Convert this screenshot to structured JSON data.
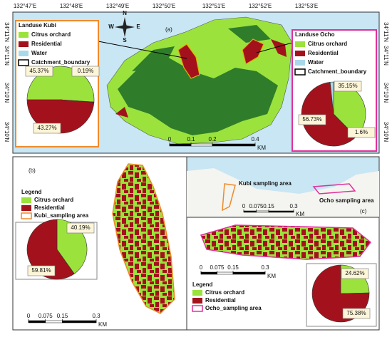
{
  "map_a": {
    "label": "(a)",
    "lon_labels": [
      "132°47'E",
      "132°48'E",
      "132°49'E",
      "132°50'E",
      "132°51'E",
      "132°52'E",
      "132°53'E"
    ],
    "lat_labels_left": [
      "34°11'N",
      "34°11'N",
      "34°10'N",
      "34°10'N"
    ],
    "lat_labels_right": [
      "34°11'N",
      "34°11'N",
      "34°10'N",
      "34°10'N"
    ],
    "north": [
      "N",
      "E",
      "S",
      "W"
    ],
    "scale": {
      "ticks": [
        0,
        0.1,
        0.2,
        0.4
      ],
      "unit": "KM"
    },
    "kubi": {
      "title": "Landuse Kubi",
      "legend": [
        {
          "name": "Citrus orchard",
          "fill": "#9be33c"
        },
        {
          "name": "Residential",
          "fill": "#a3121c"
        },
        {
          "name": "Water",
          "fill": "#a9d8ea"
        },
        {
          "name": "Catchment_boundary",
          "stroke": "#000000"
        }
      ],
      "pie": {
        "values": [
          45.37,
          0.19,
          43.27
        ],
        "value_labels": [
          "45.37%",
          "0.19%",
          "43.27%"
        ],
        "colors": [
          "#9be33c",
          "#a9d8ea",
          "#a3121c"
        ]
      }
    },
    "ocho": {
      "title": "Landuse Ocho",
      "legend": [
        {
          "name": "Citrus orchard",
          "fill": "#9be33c"
        },
        {
          "name": "Residential",
          "fill": "#a3121c"
        },
        {
          "name": "Water",
          "fill": "#a9d8ea"
        },
        {
          "name": "Catchment_boundary",
          "stroke": "#000000"
        }
      ],
      "pie": {
        "values": [
          35.15,
          56.73,
          1.6
        ],
        "value_labels": [
          "35.15%",
          "56.73%",
          "1.6%"
        ],
        "colors": [
          "#9be33c",
          "#a3121c",
          "#a9d8ea"
        ]
      }
    }
  },
  "panel_b": {
    "label": "(b)",
    "legend_title": "Legend",
    "legend": [
      {
        "name": "Citrus orchard",
        "fill": "#9be33c"
      },
      {
        "name": "Residential",
        "fill": "#a3121c"
      },
      {
        "name": "Kubi_sampling area",
        "stroke": "#f08a2a"
      }
    ],
    "pie": {
      "values": [
        40.19,
        59.81
      ],
      "value_labels": [
        "40.19%",
        "59.81%"
      ],
      "colors": [
        "#9be33c",
        "#a3121c"
      ]
    },
    "scale": {
      "ticks": [
        0,
        0.075,
        0.15,
        0.3
      ],
      "unit": "KM"
    }
  },
  "panel_c": {
    "label": "(c)",
    "inset_labels": [
      "Kubi sampling area",
      "Ocho sampling area"
    ],
    "inset_scale": {
      "ticks": [
        0,
        0.075,
        0.15,
        0.3
      ],
      "unit": "KM"
    },
    "legend_title": "Legend",
    "legend": [
      {
        "name": "Citrus orchard",
        "fill": "#9be33c"
      },
      {
        "name": "Residential",
        "fill": "#a3121c"
      },
      {
        "name": "Ocho_sampling area",
        "stroke": "#e0309c"
      }
    ],
    "pie": {
      "values": [
        24.62,
        75.38
      ],
      "value_labels": [
        "24.62%",
        "75.38%"
      ],
      "colors": [
        "#9be33c",
        "#a3121c"
      ]
    },
    "scale": {
      "ticks": [
        0,
        0.075,
        0.15,
        0.3
      ],
      "unit": "KM"
    }
  }
}
